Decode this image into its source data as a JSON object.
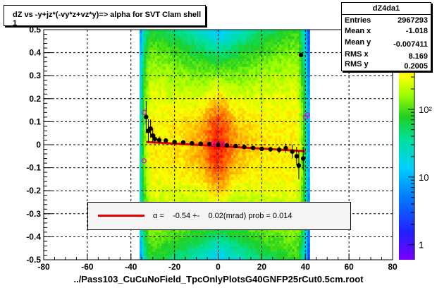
{
  "title": "dZ vs -y+jz*(-vy*z+vz*y)=> alpha for SVT Clam shell 1",
  "stats": {
    "name": "dZ4da1",
    "rows": [
      {
        "label": "Entries",
        "value": "2967293"
      },
      {
        "label": "Mean x",
        "value": "-1.018"
      },
      {
        "label": "Mean y",
        "value": "-0.007411"
      },
      {
        "label": "RMS x",
        "value": "8.169"
      },
      {
        "label": "RMS y",
        "value": "0.2005"
      }
    ]
  },
  "legend": {
    "text": "α =    -0.54 +-    0.02(mrad) prob = 0.014",
    "line_color": "#e00000"
  },
  "footer": "../Pass103_CuCuNoField_TpcOnlyPlotsG40GNFP25rCut0.5cm.root",
  "chart_data": {
    "type": "heatmap",
    "title": "dZ vs -y+jz*(-vy*z+vz*y)=> alpha for SVT Clam shell 1",
    "xlabel": "",
    "ylabel": "",
    "xlim": [
      -80,
      80
    ],
    "ylim": [
      -0.5,
      0.5
    ],
    "x_ticks": [
      "-80",
      "-60",
      "-40",
      "-20",
      "0",
      "20",
      "40",
      "60",
      "80"
    ],
    "y_ticks": [
      "-0.5",
      "-0.4",
      "-0.3",
      "-0.2",
      "-0.1",
      "0",
      "0.1",
      "0.2",
      "0.3",
      "0.4",
      "0.5"
    ],
    "grid": true,
    "z_scale": "log",
    "z_ticks": [
      {
        "value": 1,
        "label": "1"
      },
      {
        "value": 10,
        "label": "10"
      },
      {
        "value": 100,
        "label": "10²"
      }
    ],
    "zlim": [
      0.6,
      1500
    ],
    "fit_line": {
      "slope_mrad": -0.54,
      "error_mrad": 0.02,
      "prob": 0.014,
      "x_range": [
        -33,
        40
      ],
      "y_at_x_min": 0.012,
      "y_at_x_max": -0.028
    },
    "profile_points": [
      {
        "x": -33,
        "y": 0.12,
        "err": 0.07
      },
      {
        "x": -32,
        "y": 0.06,
        "err": 0.05
      },
      {
        "x": -31,
        "y": 0.07,
        "err": 0.04
      },
      {
        "x": -30,
        "y": 0.04,
        "err": 0.03
      },
      {
        "x": -29,
        "y": 0.025,
        "err": 0.02
      },
      {
        "x": -27,
        "y": 0.02,
        "err": 0.015
      },
      {
        "x": -24,
        "y": 0.018,
        "err": 0.01
      },
      {
        "x": -20,
        "y": 0.012,
        "err": 0.008
      },
      {
        "x": -16,
        "y": 0.01,
        "err": 0.006
      },
      {
        "x": -12,
        "y": 0.006,
        "err": 0.005
      },
      {
        "x": -8,
        "y": 0.004,
        "err": 0.004
      },
      {
        "x": -4,
        "y": 0.003,
        "err": 0.004
      },
      {
        "x": 0,
        "y": 0.0,
        "err": 0.004
      },
      {
        "x": 4,
        "y": -0.003,
        "err": 0.004
      },
      {
        "x": 8,
        "y": -0.006,
        "err": 0.004
      },
      {
        "x": 12,
        "y": -0.01,
        "err": 0.005
      },
      {
        "x": 16,
        "y": -0.014,
        "err": 0.006
      },
      {
        "x": 20,
        "y": -0.018,
        "err": 0.008
      },
      {
        "x": 24,
        "y": -0.02,
        "err": 0.01
      },
      {
        "x": 28,
        "y": -0.022,
        "err": 0.015
      },
      {
        "x": 31,
        "y": -0.015,
        "err": 0.02
      },
      {
        "x": 34,
        "y": -0.03,
        "err": 0.03
      },
      {
        "x": 36,
        "y": -0.05,
        "err": 0.04
      },
      {
        "x": 37,
        "y": -0.09,
        "err": 0.06
      },
      {
        "x": 38,
        "y": 0.39,
        "err": 0.01
      },
      {
        "x": 39,
        "y": -0.06,
        "err": 0.05
      }
    ],
    "outlier_markers": [
      {
        "x": -34,
        "y": 0.14
      },
      {
        "x": -34,
        "y": -0.07
      },
      {
        "x": 40,
        "y": 0.12
      },
      {
        "x": 41,
        "y": 0.13
      },
      {
        "x": -2,
        "y": 0.005
      },
      {
        "x": 2,
        "y": 0.005
      }
    ]
  }
}
